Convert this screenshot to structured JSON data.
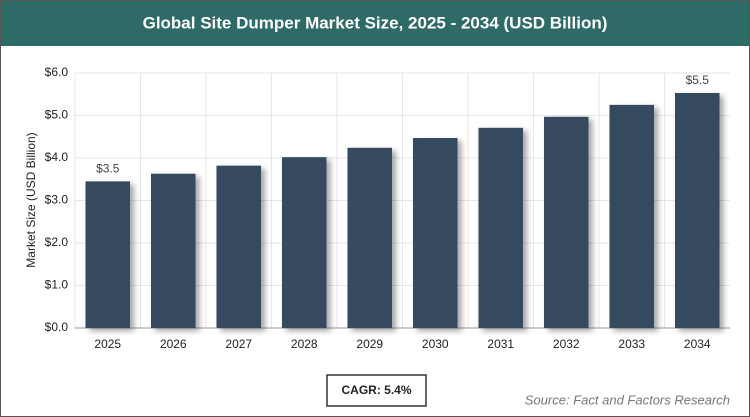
{
  "chart_data": {
    "type": "bar",
    "title": "Global Site Dumper Market Size, 2025 - 2034 (USD Billion)",
    "y_axis_label": "Market Size (USD Billion)",
    "categories": [
      "2025",
      "2026",
      "2027",
      "2028",
      "2029",
      "2030",
      "2031",
      "2032",
      "2033",
      "2034"
    ],
    "values": [
      3.45,
      3.63,
      3.82,
      4.02,
      4.24,
      4.47,
      4.71,
      4.97,
      5.25,
      5.53
    ],
    "value_labels": [
      "$3.5",
      null,
      null,
      null,
      null,
      null,
      null,
      null,
      null,
      "$5.5"
    ],
    "color": "#354a5f",
    "ylim": [
      0,
      6
    ],
    "yticks": [
      {
        "value": 0,
        "label": "$0.0"
      },
      {
        "value": 1,
        "label": "$1.0"
      },
      {
        "value": 2,
        "label": "$2.0"
      },
      {
        "value": 3,
        "label": "$3.0"
      },
      {
        "value": 4,
        "label": "$4.0"
      },
      {
        "value": 5,
        "label": "$5.0"
      },
      {
        "value": 6,
        "label": "$6.0"
      }
    ],
    "grid": true,
    "annotation": "CAGR: 5.4%",
    "source": "Source: Fact and Factors Research"
  }
}
